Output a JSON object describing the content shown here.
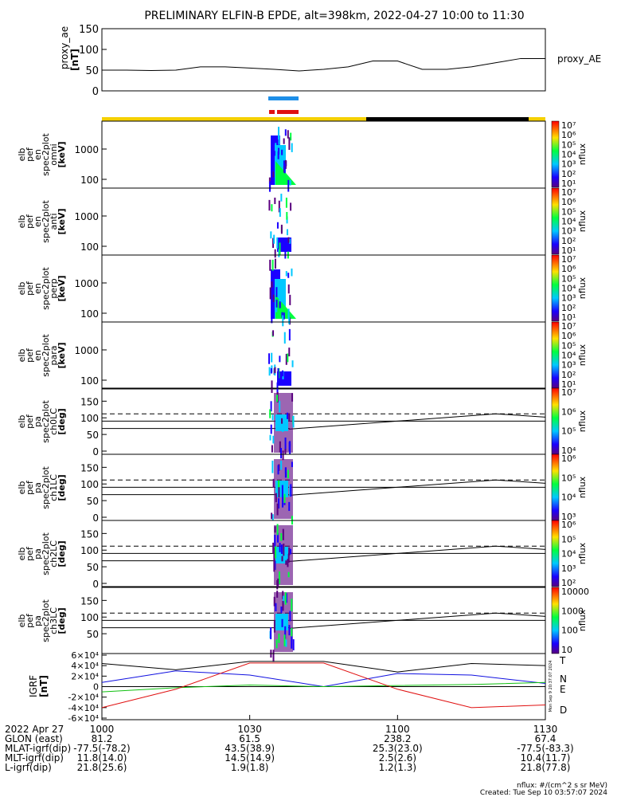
{
  "title": "PRELIMINARY ELFIN-B EPDE, alt=398km, 2022-04-27 10:00 to 11:30",
  "colors": {
    "yellow": "#f5d000",
    "black": "#000000",
    "blue": "#1e8fe8",
    "red": "#e01010",
    "n_comp": "#1010e0",
    "e_comp": "#10c010",
    "d_comp": "#e01010",
    "t_comp": "#000000"
  },
  "panels": {
    "proxy_ae": {
      "ylabel": [
        "proxy_ae",
        "[nT]"
      ],
      "yticks": [
        "150",
        "100",
        "50",
        "0"
      ],
      "ylim": [
        0,
        150
      ],
      "series_label": "proxy_AE"
    },
    "spec": [
      {
        "ylabel": [
          "elb",
          "pef",
          "en",
          "spec2plot",
          "omni",
          "[keV]"
        ],
        "yticks": [
          "1000",
          "100"
        ]
      },
      {
        "ylabel": [
          "elb",
          "pef",
          "en",
          "spec2plot",
          "anti",
          "[keV]"
        ],
        "yticks": [
          "1000",
          "100"
        ]
      },
      {
        "ylabel": [
          "elb",
          "pef",
          "en",
          "spec2plot",
          "perp",
          "[keV]"
        ],
        "yticks": [
          "1000",
          "100"
        ]
      },
      {
        "ylabel": [
          "elb",
          "pef",
          "en",
          "spec2plot",
          "para",
          "[keV]"
        ],
        "yticks": [
          "1000",
          "100"
        ]
      }
    ],
    "pa": [
      {
        "ylabel": [
          "elb",
          "pef",
          "pa",
          "spec2plot",
          "ch0LC",
          "[deg]"
        ],
        "yticks": [
          "150",
          "100",
          "50",
          "0"
        ]
      },
      {
        "ylabel": [
          "elb",
          "pef",
          "pa",
          "spec2plot",
          "ch1LC",
          "[deg]"
        ],
        "yticks": [
          "150",
          "100",
          "50",
          "0"
        ]
      },
      {
        "ylabel": [
          "elb",
          "pef",
          "pa",
          "spec2plot",
          "ch2LC",
          "[deg]"
        ],
        "yticks": [
          "150",
          "100",
          "50",
          "0"
        ]
      },
      {
        "ylabel": [
          "elb",
          "pef",
          "pa",
          "spec2plot",
          "ch3LC",
          "[deg]"
        ],
        "yticks": [
          "150",
          "100",
          "50"
        ]
      }
    ],
    "igrf": {
      "ylabel": [
        "IGRF",
        "[nT]"
      ],
      "yticks": [
        "6×10⁴",
        "4×10⁴",
        "2×10⁴",
        "0",
        "-2×10⁴",
        "-4×10⁴",
        "-6×10⁴"
      ],
      "components": [
        "T",
        "N",
        "E",
        "D"
      ],
      "stamp": "Mon Sep 9 20:37:07 2024"
    },
    "colorbars": [
      {
        "ticks": [
          "10⁷",
          "10⁶",
          "10⁵",
          "10⁴",
          "10³",
          "10²",
          "10¹"
        ],
        "label": "nflux"
      },
      {
        "ticks": [
          "10⁷",
          "10⁶",
          "10⁵",
          "10⁴",
          "10³",
          "10²",
          "10¹"
        ],
        "label": "nflux"
      },
      {
        "ticks": [
          "10⁷",
          "10⁶",
          "10⁵",
          "10⁴",
          "10³",
          "10²",
          "10¹"
        ],
        "label": "nflux"
      },
      {
        "ticks": [
          "10⁷",
          "10⁶",
          "10⁵",
          "10⁴",
          "10³",
          "10²",
          "10¹"
        ],
        "label": "nflux"
      },
      {
        "ticks": [
          "10⁷",
          "10⁶",
          "10⁵",
          "10⁴"
        ],
        "label": "nflux"
      },
      {
        "ticks": [
          "10⁶",
          "10⁵",
          "10⁴",
          "10³"
        ],
        "label": "nflux"
      },
      {
        "ticks": [
          "10⁶",
          "10⁵",
          "10⁴",
          "10³",
          "10²"
        ],
        "label": "nflux"
      },
      {
        "ticks": [
          "10000",
          "1000",
          "100",
          "10"
        ],
        "label": "nflux"
      }
    ]
  },
  "xaxis": {
    "rows": [
      {
        "label": "2022 Apr 27",
        "values": [
          "1000",
          "1030",
          "1100",
          "1130"
        ]
      },
      {
        "label": "GLON (east)",
        "values": [
          "81.2",
          "61.5",
          "238.2",
          "67.4"
        ]
      },
      {
        "label": "MLAT-igrf(dip)",
        "values": [
          "-77.5(-78.2)",
          "43.5(38.9)",
          "25.3(23.0)",
          "-77.5(-83.3)"
        ]
      },
      {
        "label": "MLT-igrf(dip)",
        "values": [
          "11.8(14.0)",
          "14.5(14.9)",
          "2.5(2.6)",
          "10.4(11.7)"
        ]
      },
      {
        "label": "L-igrf(dip)",
        "values": [
          "21.8(25.6)",
          "1.9(1.8)",
          "1.2(1.3)",
          "21.8(77.8)"
        ]
      }
    ]
  },
  "footer": {
    "units": "nflux: #/(cm^2 s sr MeV)",
    "created": "Created: Tue Sep 10 03:57:07 2024"
  },
  "chart_data": {
    "type": "line",
    "title": "PRELIMINARY ELFIN-B EPDE, alt=398km, 2022-04-27 10:00 to 11:30",
    "x_range": [
      "10:00",
      "11:30"
    ],
    "proxy_ae": {
      "name": "proxy_AE",
      "x_min": [
        0,
        5,
        10,
        15,
        20,
        25,
        30,
        35,
        40,
        45,
        50,
        55,
        60,
        65,
        70,
        75,
        80,
        85,
        90
      ],
      "values": [
        50,
        50,
        49,
        50,
        58,
        58,
        55,
        52,
        48,
        52,
        58,
        72,
        72,
        52,
        52,
        58,
        68,
        78,
        78
      ],
      "ylim": [
        0,
        150
      ]
    },
    "igrf": {
      "ylim": [
        -60000,
        60000
      ],
      "series": [
        {
          "name": "T",
          "x_min": [
            0,
            15,
            30,
            45,
            60,
            75,
            90
          ],
          "values": [
            44000,
            32000,
            48000,
            48000,
            28000,
            44000,
            40000
          ]
        },
        {
          "name": "N",
          "x_min": [
            0,
            15,
            30,
            45,
            60,
            75,
            90
          ],
          "values": [
            8000,
            30000,
            22000,
            0,
            25000,
            22000,
            6000
          ]
        },
        {
          "name": "E",
          "x_min": [
            0,
            15,
            30,
            45,
            60,
            75,
            90
          ],
          "values": [
            -10000,
            -2000,
            3000,
            0,
            2000,
            4000,
            8000
          ]
        },
        {
          "name": "D",
          "x_min": [
            0,
            15,
            30,
            45,
            60,
            75,
            90
          ],
          "values": [
            -40000,
            -5000,
            45000,
            45000,
            -5000,
            -40000,
            -35000
          ]
        }
      ]
    },
    "burst_minute_range": [
      35,
      41
    ]
  }
}
